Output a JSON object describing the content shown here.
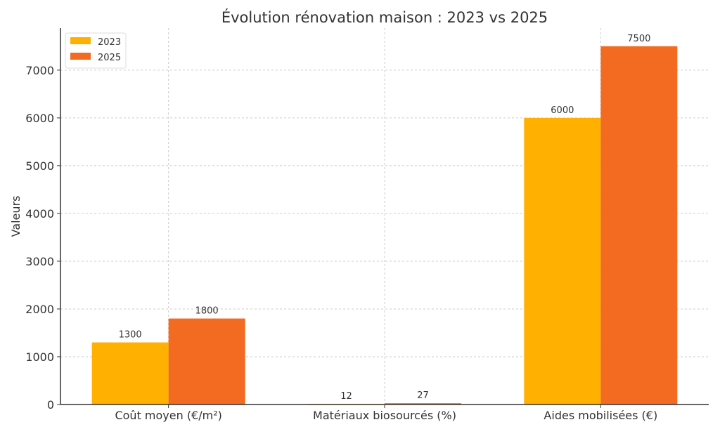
{
  "chart_data": {
    "type": "bar",
    "title": "Évolution rénovation maison : 2023 vs 2025",
    "xlabel": "",
    "ylabel": "Valeurs",
    "categories": [
      "Coût moyen (€/m²)",
      "Matériaux biosourcés (%)",
      "Aides mobilisées (€)"
    ],
    "series": [
      {
        "name": "2023",
        "values": [
          1300,
          12,
          6000
        ],
        "color": "#FFB000"
      },
      {
        "name": "2025",
        "values": [
          1800,
          27,
          7500
        ],
        "color": "#F26B21"
      }
    ],
    "ylim": [
      0,
      7880
    ],
    "yticks": [
      0,
      1000,
      2000,
      3000,
      4000,
      5000,
      6000,
      7000
    ],
    "grid": true,
    "legend_position": "top-left",
    "data_labels": true
  }
}
